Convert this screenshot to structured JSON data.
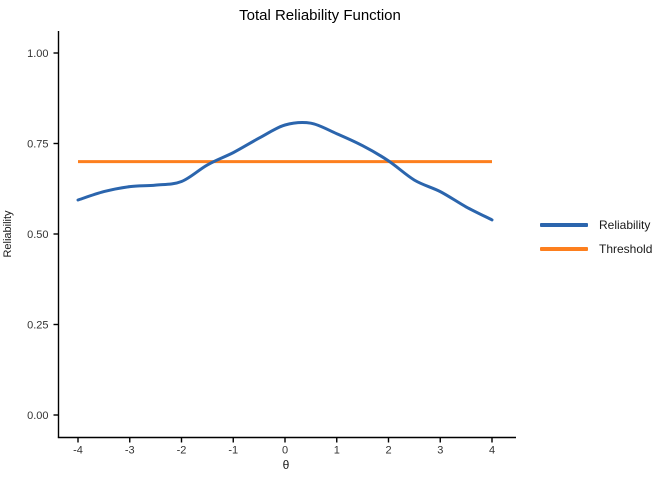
{
  "chart_data": {
    "type": "line",
    "title": "Total Reliability Function",
    "xlabel": "θ",
    "ylabel": "Reliability",
    "xlim": [
      -4,
      4
    ],
    "ylim": [
      0,
      1
    ],
    "x_ticks": [
      -4,
      -3,
      -2,
      -1,
      0,
      1,
      2,
      3,
      4
    ],
    "x_tick_labels": [
      "-4",
      "-3",
      "-2",
      "-1",
      "0",
      "1",
      "2",
      "3",
      "4"
    ],
    "y_ticks": [
      0,
      0.25,
      0.5,
      0.75,
      1.0
    ],
    "y_tick_labels": [
      "0.00",
      "0.25",
      "0.50",
      "0.75",
      "1.00"
    ],
    "grid": false,
    "legend_position": "right",
    "axis_color": "#000000",
    "tick_label_color": "#333333",
    "series": [
      {
        "name": "Reliability",
        "color": "#2b65ad",
        "x": [
          -4,
          -3.5,
          -3,
          -2.5,
          -2,
          -1.5,
          -1,
          -0.5,
          0,
          0.5,
          1,
          1.5,
          2,
          2.5,
          3,
          3.5,
          4
        ],
        "values": [
          0.594,
          0.617,
          0.631,
          0.635,
          0.645,
          0.691,
          0.725,
          0.765,
          0.801,
          0.806,
          0.777,
          0.744,
          0.702,
          0.649,
          0.617,
          0.575,
          0.539
        ]
      },
      {
        "name": "Threshold",
        "color": "#fd7f1e",
        "x": [
          -4,
          4
        ],
        "values": [
          0.7,
          0.7
        ]
      }
    ]
  }
}
